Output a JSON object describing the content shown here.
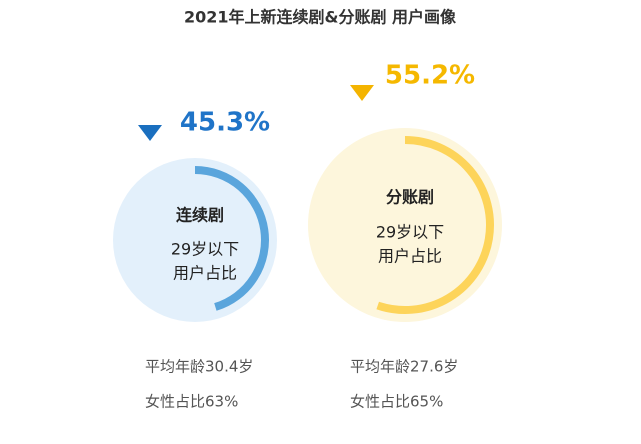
{
  "title": "2021年上新连续剧&分账剧 用户画像",
  "chart_data": [
    {
      "type": "gauge",
      "title": "连续剧",
      "subtitle": [
        "29岁以下",
        "用户占比"
      ],
      "values": [
        45.3
      ],
      "value_labels": [
        "45.3%"
      ],
      "ylim": [
        0,
        100
      ],
      "color": "#5aa5dc",
      "label_color": "#1f74c8",
      "marker_color": "#1a6fbf",
      "background": "#e3f0fb",
      "notes": [
        "平均年龄30.4岁",
        "女性占比63%"
      ]
    },
    {
      "type": "gauge",
      "title": "分账剧",
      "subtitle": [
        "29岁以下",
        "用户占比"
      ],
      "values": [
        55.2
      ],
      "value_labels": [
        "55.2%"
      ],
      "ylim": [
        0,
        100
      ],
      "color": "#fdd45a",
      "label_color": "#f5b800",
      "marker_color": "#f4b400",
      "background": "#fdf6dc",
      "notes": [
        "平均年龄27.6岁",
        "女性占比65%"
      ]
    }
  ]
}
